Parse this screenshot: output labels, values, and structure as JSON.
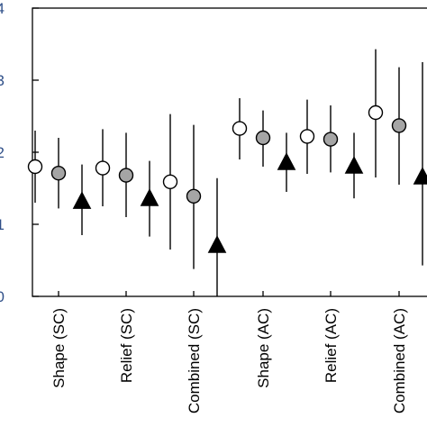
{
  "chart_data": {
    "type": "scatter",
    "categories": [
      "Shape (SC)",
      "Relief (SC)",
      "Combined (SC)",
      "Shape (AC)",
      "Relief (AC)",
      "Combined (AC)"
    ],
    "y_tick_labels": [
      "0",
      "1",
      "2",
      "3",
      "4"
    ],
    "ylim": [
      0,
      4
    ],
    "grid": false,
    "error_bars": true,
    "series": [
      {
        "marker": "circle-open",
        "fill": "#ffffff",
        "values": [
          1.8,
          1.78,
          1.59,
          2.33,
          2.22,
          2.55
        ],
        "lower": [
          1.3,
          1.25,
          0.65,
          1.9,
          1.7,
          1.65
        ],
        "upper": [
          2.3,
          2.32,
          2.53,
          2.75,
          2.73,
          3.43
        ]
      },
      {
        "marker": "circle-filled",
        "fill": "#a5a5a5",
        "values": [
          1.71,
          1.68,
          1.39,
          2.2,
          2.18,
          2.37
        ],
        "lower": [
          1.22,
          1.1,
          0.38,
          1.8,
          1.72,
          1.55
        ],
        "upper": [
          2.2,
          2.27,
          2.38,
          2.58,
          2.65,
          3.18
        ]
      },
      {
        "marker": "triangle",
        "fill": "#000000",
        "values": [
          1.31,
          1.35,
          0.7,
          1.85,
          1.8,
          1.65
        ],
        "lower": [
          0.85,
          0.83,
          0.0,
          1.45,
          1.36,
          0.43
        ],
        "upper": [
          1.83,
          1.88,
          1.64,
          2.27,
          2.27,
          3.25
        ]
      }
    ]
  }
}
